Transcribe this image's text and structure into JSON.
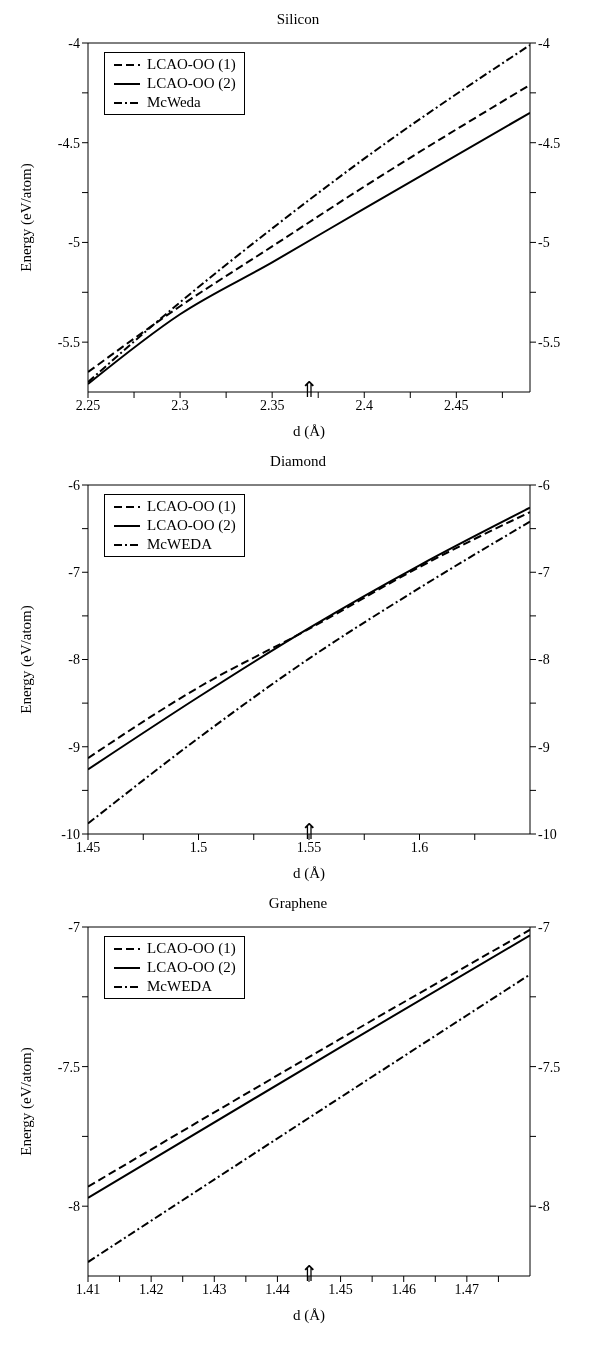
{
  "chart_data": [
    {
      "type": "line",
      "title": "Silicon",
      "xlabel": "d (Å)",
      "ylabel": "Energy (eV/atom)",
      "legend": "top left",
      "grid": false,
      "x": [
        2.25,
        2.3,
        2.35,
        2.4,
        2.49
      ],
      "xlim": [
        2.25,
        2.49
      ],
      "xticks": [
        {
          "value": 2.25,
          "label": "2.25"
        },
        {
          "value": 2.275,
          "label": null
        },
        {
          "value": 2.3,
          "label": "2.3"
        },
        {
          "value": 2.325,
          "label": null
        },
        {
          "value": 2.35,
          "label": "2.35"
        },
        {
          "value": 2.375,
          "label": null
        },
        {
          "value": 2.4,
          "label": "2.4"
        },
        {
          "value": 2.425,
          "label": null
        },
        {
          "value": 2.45,
          "label": "2.45"
        },
        {
          "value": 2.475,
          "label": null
        }
      ],
      "ylim": [
        -5.75,
        -4
      ],
      "yticks": [
        -5.5,
        {
          "value": -5.25,
          "label": null
        },
        -5,
        {
          "value": -4.75,
          "label": null
        },
        -4.5,
        {
          "value": -4.25,
          "label": null
        },
        -4
      ],
      "y2lim": [
        -5.75,
        -4
      ],
      "y2ticks": [
        -5.5,
        {
          "value": -5.25,
          "label": null
        },
        -5,
        {
          "value": -4.75,
          "label": null
        },
        -4.5,
        {
          "value": -4.25,
          "label": null
        },
        -4
      ],
      "series": [
        {
          "name": "LCAO-OO (1)",
          "color": "#000000",
          "line_style": "dashed",
          "values": [
            -5.65,
            -5.32,
            -5.02,
            -4.72,
            -4.21
          ]
        },
        {
          "name": "LCAO-OO (2)",
          "color": "#000000",
          "line_style": "solid",
          "values": [
            -5.71,
            -5.36,
            -5.1,
            -4.83,
            -4.35
          ]
        },
        {
          "name": "McWeda",
          "color": "#000000",
          "line_style": "dashdot",
          "values": [
            -5.7,
            -5.3,
            -4.93,
            -4.58,
            -4.01
          ]
        }
      ],
      "annotations": [
        "⇑"
      ]
    },
    {
      "type": "line",
      "title": "Diamond",
      "xlabel": "d (Å)",
      "ylabel": "Energy (eV/atom)",
      "legend": "top left",
      "grid": false,
      "x": [
        1.45,
        1.5,
        1.55,
        1.6,
        1.65
      ],
      "xlim": [
        1.45,
        1.65
      ],
      "xticks": [
        {
          "value": 1.45,
          "label": "1.45"
        },
        {
          "value": 1.475,
          "label": null
        },
        {
          "value": 1.5,
          "label": "1.5"
        },
        {
          "value": 1.525,
          "label": null
        },
        {
          "value": 1.55,
          "label": "1.55"
        },
        {
          "value": 1.575,
          "label": null
        },
        {
          "value": 1.6,
          "label": "1.6"
        },
        {
          "value": 1.625,
          "label": null
        }
      ],
      "ylim": [
        -10,
        -6
      ],
      "yticks": [
        -10,
        {
          "value": -9.5,
          "label": null
        },
        -9,
        {
          "value": -8.5,
          "label": null
        },
        -8,
        {
          "value": -7.5,
          "label": null
        },
        -7,
        {
          "value": -6.5,
          "label": null
        },
        -6
      ],
      "y2lim": [
        -10,
        -6
      ],
      "y2ticks": [
        -10,
        {
          "value": -9.5,
          "label": null
        },
        -9,
        {
          "value": -8.5,
          "label": null
        },
        -8,
        {
          "value": -7.5,
          "label": null
        },
        -7,
        {
          "value": -6.5,
          "label": null
        },
        -6
      ],
      "series": [
        {
          "name": "LCAO-OO (1)",
          "color": "#000000",
          "line_style": "dashed",
          "values": [
            -9.13,
            -8.32,
            -7.65,
            -6.94,
            -6.31
          ]
        },
        {
          "name": "LCAO-OO (2)",
          "color": "#000000",
          "line_style": "solid",
          "values": [
            -9.26,
            -8.43,
            -7.64,
            -6.92,
            -6.26
          ]
        },
        {
          "name": "McWEDA",
          "color": "#000000",
          "line_style": "dashdot",
          "values": [
            -9.88,
            -8.9,
            -7.99,
            -7.18,
            -6.42
          ]
        }
      ],
      "annotations": [
        "⇑"
      ]
    },
    {
      "type": "line",
      "title": "Graphene",
      "xlabel": "d (Å)",
      "ylabel": "Energy (eV/atom)",
      "legend": "top left",
      "grid": false,
      "x": [
        1.41,
        1.45,
        1.48
      ],
      "xlim": [
        1.41,
        1.48
      ],
      "xticks": [
        {
          "value": 1.41,
          "label": "1.41"
        },
        {
          "value": 1.415,
          "label": null
        },
        {
          "value": 1.42,
          "label": "1.42"
        },
        {
          "value": 1.425,
          "label": null
        },
        {
          "value": 1.43,
          "label": "1.43"
        },
        {
          "value": 1.435,
          "label": null
        },
        {
          "value": 1.44,
          "label": "1.44"
        },
        {
          "value": 1.445,
          "label": null
        },
        {
          "value": 1.45,
          "label": "1.45"
        },
        {
          "value": 1.455,
          "label": null
        },
        {
          "value": 1.46,
          "label": "1.46"
        },
        {
          "value": 1.465,
          "label": null
        },
        {
          "value": 1.47,
          "label": "1.47"
        },
        {
          "value": 1.475,
          "label": null
        }
      ],
      "ylim": [
        -8.25,
        -7
      ],
      "yticks": [
        -8,
        {
          "value": -7.75,
          "label": null
        },
        -7.5,
        {
          "value": -7.25,
          "label": null
        },
        -7
      ],
      "y2lim": [
        -8.25,
        -7
      ],
      "y2ticks": [
        -8,
        {
          "value": -7.75,
          "label": null
        },
        -7.5,
        {
          "value": -7.25,
          "label": null
        },
        -7
      ],
      "series": [
        {
          "name": "LCAO-OO (1)",
          "color": "#000000",
          "line_style": "dashed",
          "values": [
            -7.93,
            -7.4,
            -7.01
          ]
        },
        {
          "name": "LCAO-OO (2)",
          "color": "#000000",
          "line_style": "solid",
          "values": [
            -7.97,
            -7.43,
            -7.03
          ]
        },
        {
          "name": "McWEDA",
          "color": "#000000",
          "line_style": "dashdot",
          "values": [
            -8.2,
            -7.61,
            -7.17
          ]
        }
      ],
      "annotations": [
        "⇑"
      ]
    }
  ]
}
